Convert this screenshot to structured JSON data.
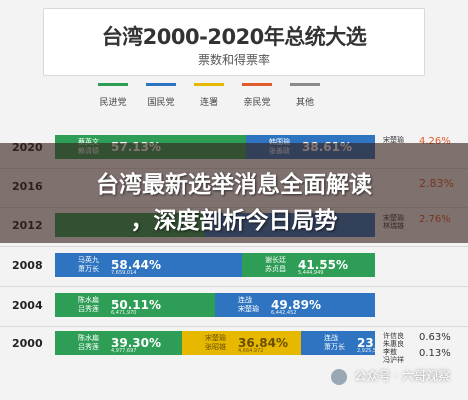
{
  "header": {
    "title": "台湾2000-2020年总统大选",
    "subtitle": "票数和得票率"
  },
  "legend": [
    {
      "label": "民进党",
      "color": "#2e9e57"
    },
    {
      "label": "国民党",
      "color": "#2f74c0"
    },
    {
      "label": "连署",
      "color": "#e6b800"
    },
    {
      "label": "亲民党",
      "color": "#e05a2b"
    },
    {
      "label": "其他",
      "color": "#8a8a8a"
    }
  ],
  "banner": {
    "line1": "台湾最新选举消息全面解读",
    "line2": "，深度剖析今日局势"
  },
  "watermark": "公众号 · 六哥观察",
  "chart_data": {
    "type": "bar",
    "title": "台湾2000-2020年总统大选",
    "subtitle": "票数和得票率",
    "stacked": true,
    "orientation": "horizontal",
    "categories": [
      "2020",
      "2016",
      "2012",
      "2008",
      "2004",
      "2000"
    ],
    "rows": [
      {
        "year": "2020",
        "segments": [
          {
            "party": "民进党",
            "names": [
              "蔡英文",
              "赖清德"
            ],
            "percent": 57.13,
            "pct_label": "57.13%",
            "votes": ""
          },
          {
            "party": "国民党",
            "names": [
              "韩国瑜",
              "张善政"
            ],
            "percent": 38.61,
            "pct_label": "38.61%",
            "votes": ""
          },
          {
            "party": "亲民党",
            "names": [
              "宋楚瑜",
              ""
            ],
            "percent": 4.26,
            "pct_label": "4.26%",
            "votes": ""
          }
        ],
        "others": []
      },
      {
        "year": "2016",
        "segments": [],
        "others": []
      },
      {
        "year": "2012",
        "segments": [
          {
            "party": "民进党",
            "names": [],
            "percent": 45.63,
            "pct_label": "",
            "votes": ""
          },
          {
            "party": "国民党",
            "names": [],
            "percent": 51.6,
            "pct_label": "",
            "votes": ""
          },
          {
            "party": "亲民党",
            "names": [
              "宋楚瑜",
              "林瑞雄"
            ],
            "percent": 2.76,
            "pct_label": "2.76%",
            "votes": ""
          }
        ],
        "others": []
      },
      {
        "year": "2008",
        "segments": [
          {
            "party": "国民党",
            "names": [
              "马英九",
              "萧万长"
            ],
            "percent": 58.44,
            "pct_label": "58.44%",
            "votes": "7,659,014"
          },
          {
            "party": "民进党",
            "names": [
              "谢长廷",
              "苏贞昌"
            ],
            "percent": 41.55,
            "pct_label": "41.55%",
            "votes": "5,444,949"
          }
        ],
        "others": []
      },
      {
        "year": "2004",
        "segments": [
          {
            "party": "民进党",
            "names": [
              "陈水扁",
              "吕秀莲"
            ],
            "percent": 50.11,
            "pct_label": "50.11%",
            "votes": "6,471,970"
          },
          {
            "party": "国民党",
            "names": [
              "连战",
              "宋楚瑜"
            ],
            "percent": 49.89,
            "pct_label": "49.89%",
            "votes": "6,442,452"
          }
        ],
        "others": []
      },
      {
        "year": "2000",
        "segments": [
          {
            "party": "民进党",
            "names": [
              "陈水扁",
              "吕秀莲"
            ],
            "percent": 39.3,
            "pct_label": "39.30%",
            "votes": "4,977,697"
          },
          {
            "party": "连署",
            "names": [
              "宋楚瑜",
              "张昭雄"
            ],
            "percent": 36.84,
            "pct_label": "36.84%",
            "votes": "4,664,972"
          },
          {
            "party": "国民党",
            "names": [
              "连战",
              "萧万长"
            ],
            "percent": 23.1,
            "pct_label": "23.10%",
            "votes": "2,925,513"
          }
        ],
        "others": [
          {
            "names": [
              "许信良",
              "朱惠良"
            ],
            "pct_label": "0.63%"
          },
          {
            "names": [
              "李敖",
              "冯沪祥"
            ],
            "pct_label": "0.13%"
          }
        ],
        "other_pcts_text": [
          "0.63%",
          "0.13%"
        ]
      }
    ],
    "other_partial_labels": {
      "2016": [
        "2.83%"
      ]
    }
  }
}
